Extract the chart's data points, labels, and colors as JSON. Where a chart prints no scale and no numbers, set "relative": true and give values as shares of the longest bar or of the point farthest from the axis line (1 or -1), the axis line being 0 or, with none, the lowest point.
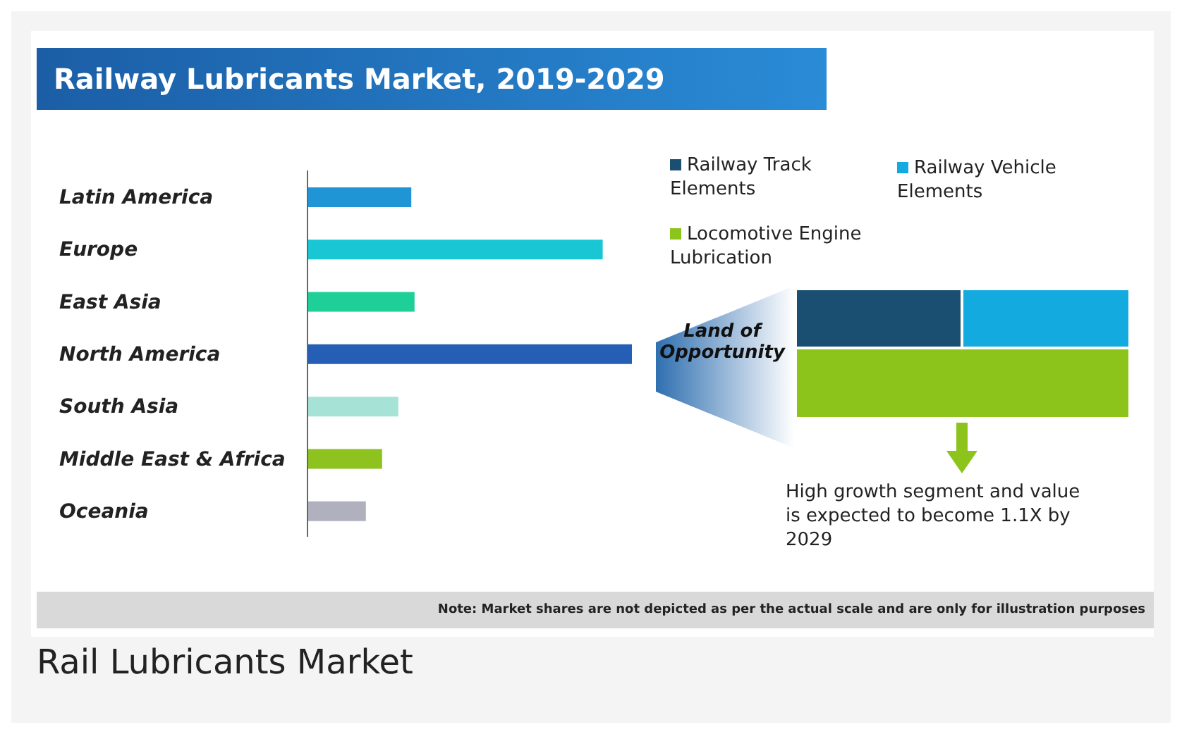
{
  "chart_data": [
    {
      "type": "bar",
      "orientation": "horizontal",
      "relative": true,
      "title": "Railway Lubricants Market, 2019-2029",
      "categories": [
        "Latin America",
        "Europe",
        "East Asia",
        "North America",
        "South Asia",
        "Middle East & Africa",
        "Oceania"
      ],
      "values": [
        0.32,
        0.91,
        0.33,
        1,
        0.28,
        0.23,
        0.18
      ],
      "colors": [
        "#1f95d6",
        "#19c6d4",
        "#1fcf98",
        "#245fb5",
        "#a6e2d6",
        "#8dc21f",
        "#b1b0bf"
      ],
      "annotations": [
        "Note: Market shares are not depicted as per the actual scale and are only for illustration purposes",
        "Rail Lubricants Market"
      ]
    },
    {
      "type": "other",
      "categories": [
        "Railway Track Elements",
        "Railway Vehicle Elements",
        "Locomotive Engine Lubrication"
      ],
      "colors": [
        "#1b4f72",
        "#13aadf",
        "#8cc41c"
      ],
      "annotations": [
        "Land of Opportunity",
        "High growth segment and value is expected to become 1.1X by 2029"
      ]
    }
  ]
}
